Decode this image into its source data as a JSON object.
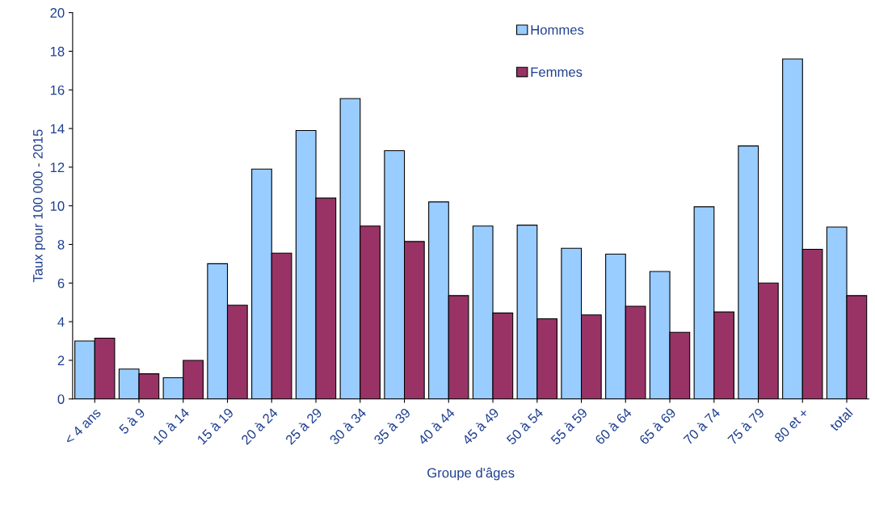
{
  "chart_data": {
    "type": "bar",
    "xlabel": "Groupe d'âges",
    "ylabel": "Taux pour 100 000 - 2015",
    "categories": [
      "< 4 ans",
      "5 à 9",
      "10 à 14",
      "15 à 19",
      "20 à 24",
      "25 à 29",
      "30 à 34",
      "35 à 39",
      "40 à 44",
      "45 à 49",
      "50 à 54",
      "55 à 59",
      "60 à 64",
      "65 à 69",
      "70 à 74",
      "75 à 79",
      "80 et +",
      "total"
    ],
    "series": [
      {
        "name": "Hommes",
        "color": "#99ccff",
        "values": [
          3.0,
          1.55,
          1.1,
          7.0,
          11.9,
          13.9,
          15.55,
          12.85,
          10.2,
          8.95,
          9.0,
          7.8,
          7.5,
          6.6,
          9.95,
          13.1,
          17.6,
          8.9
        ]
      },
      {
        "name": "Femmes",
        "color": "#993366",
        "values": [
          3.15,
          1.3,
          2.0,
          4.85,
          7.55,
          10.4,
          8.95,
          8.15,
          5.35,
          4.45,
          4.15,
          4.35,
          4.8,
          3.45,
          4.5,
          6.0,
          7.75,
          5.35
        ]
      }
    ],
    "ylim": [
      0,
      20
    ],
    "yticks": [
      0,
      2,
      4,
      6,
      8,
      10,
      12,
      14,
      16,
      18,
      20
    ],
    "grid": false,
    "legend": "top"
  }
}
